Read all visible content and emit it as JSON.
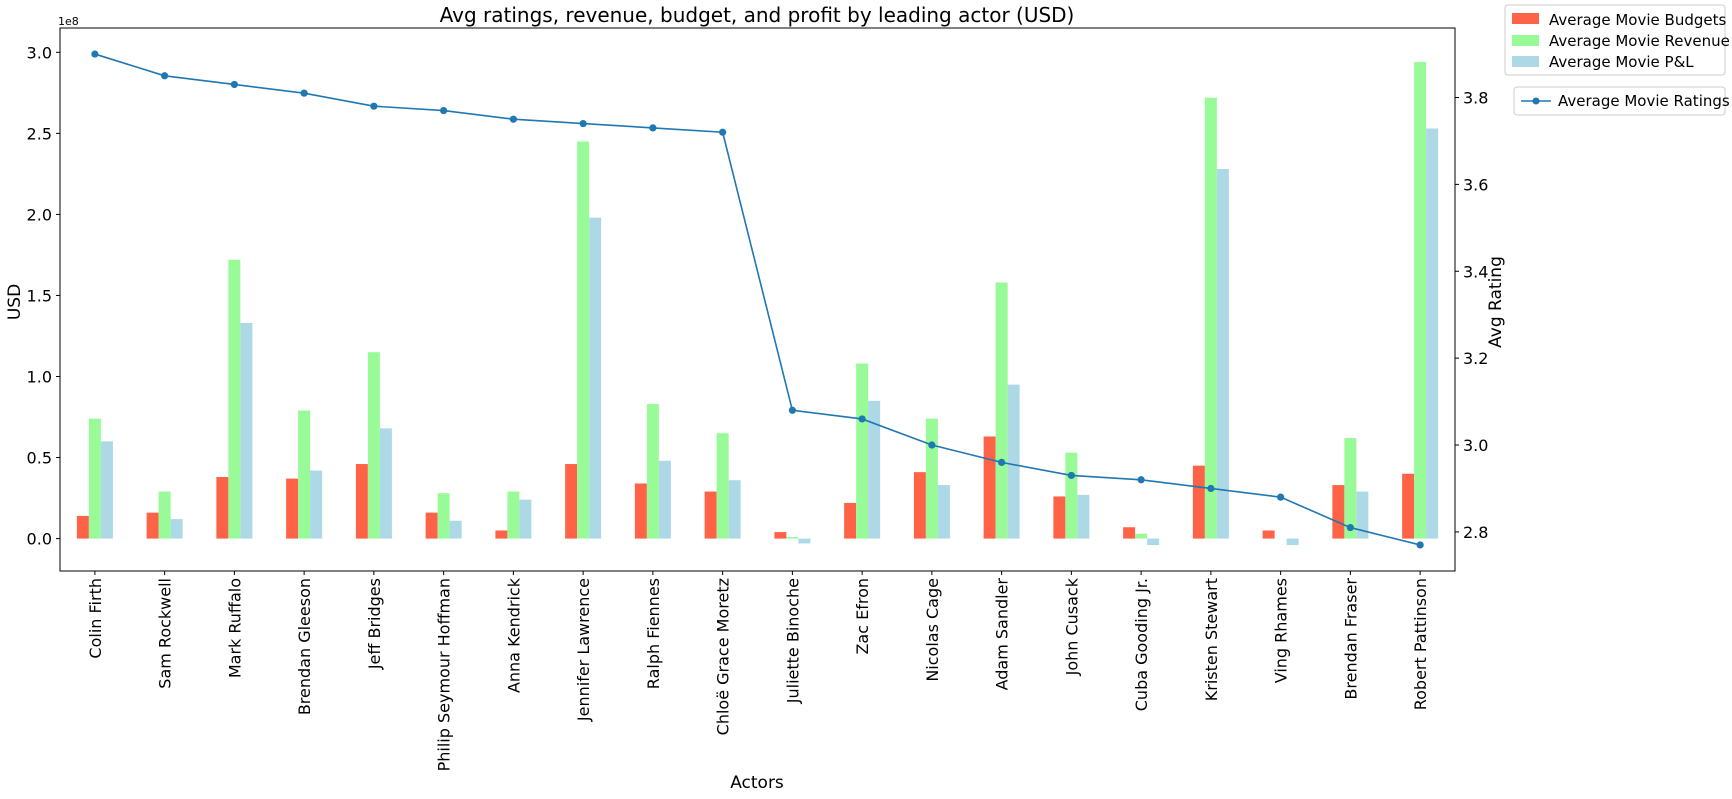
{
  "chart_data": {
    "type": "bar",
    "title": "Avg ratings, revenue, budget, and profit by leading actor (USD)",
    "xlabel": "Actors",
    "ylabel": "USD",
    "y2label": "Avg Rating",
    "y_offset_label": "1e8",
    "categories": [
      "Colin Firth",
      "Sam Rockwell",
      "Mark Ruffalo",
      "Brendan Gleeson",
      "Jeff Bridges",
      "Philip Seymour Hoffman",
      "Anna Kendrick",
      "Jennifer Lawrence",
      "Ralph Fiennes",
      "Chloë Grace Moretz",
      "Juliette Binoche",
      "Zac Efron",
      "Nicolas Cage",
      "Adam Sandler",
      "John Cusack",
      "Cuba Gooding Jr.",
      "Kristen Stewart",
      "Ving Rhames",
      "Brendan Fraser",
      "Robert Pattinson"
    ],
    "ylim": [
      -0.2,
      3.15
    ],
    "y2lim": [
      2.71,
      3.96
    ],
    "yticks": [
      "0.0",
      "0.5",
      "1.0",
      "1.5",
      "2.0",
      "2.5",
      "3.0"
    ],
    "y2ticks": [
      "2.8",
      "3.0",
      "3.2",
      "3.4",
      "3.6",
      "3.8"
    ],
    "grid": false,
    "legend_position": "outside-top-right",
    "series": [
      {
        "name": "Average Movie Budgets",
        "kind": "bar",
        "color": "#ff6347",
        "values": [
          0.14,
          0.16,
          0.38,
          0.37,
          0.46,
          0.16,
          0.05,
          0.46,
          0.34,
          0.29,
          0.04,
          0.22,
          0.41,
          0.63,
          0.26,
          0.07,
          0.45,
          0.05,
          0.33,
          0.4
        ]
      },
      {
        "name": "Average Movie Revenue",
        "kind": "bar",
        "color": "#98fb98",
        "values": [
          0.74,
          0.29,
          1.72,
          0.79,
          1.15,
          0.28,
          0.29,
          2.45,
          0.83,
          0.65,
          0.01,
          1.08,
          0.74,
          1.58,
          0.53,
          0.03,
          2.72,
          0.0,
          0.62,
          2.94
        ]
      },
      {
        "name": "Average Movie P&L",
        "kind": "bar",
        "color": "#add8e6",
        "values": [
          0.6,
          0.12,
          1.33,
          0.42,
          0.68,
          0.11,
          0.24,
          1.98,
          0.48,
          0.36,
          -0.03,
          0.85,
          0.33,
          0.95,
          0.27,
          -0.04,
          2.28,
          -0.04,
          0.29,
          2.53
        ]
      },
      {
        "name": "Average Movie Ratings",
        "kind": "line",
        "axis": "right",
        "color": "#1f77b4",
        "values": [
          3.9,
          3.85,
          3.83,
          3.81,
          3.78,
          3.77,
          3.75,
          3.74,
          3.73,
          3.72,
          3.08,
          3.06,
          3.0,
          2.96,
          2.93,
          2.92,
          2.9,
          2.88,
          2.81,
          2.77
        ]
      }
    ]
  }
}
